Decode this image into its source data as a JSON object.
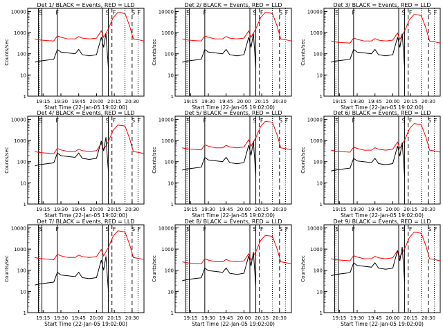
{
  "figure": {
    "panel_titles": [
      "Det 1/ BLACK = Events, RED = LLD",
      "Det 2/ BLACK = Events, RED = LLD",
      "Det 3/ BLACK = Events, RED = LLD",
      "Det 4/ BLACK = Events, RED = LLD",
      "Det 5/ BLACK = Events, RED = LLD",
      "Det 6/ BLACK = Events, RED = LLD",
      "Det 7/ BLACK = Events, RED = LLD",
      "Det 8/ BLACK = Events, RED = LLD",
      "Det 9/ BLACK = Events, RED = LLD"
    ],
    "xlabel": "Start Time (22-Jan-05 19:02:00)",
    "ylabel": "Counts/sec",
    "xticks": [
      "19:15",
      "19:30",
      "19:45",
      "20:00",
      "20:15",
      "20:30"
    ],
    "yticks": [
      "1",
      "10",
      "100",
      "1000",
      "10000"
    ],
    "markers": [
      "S",
      "F",
      "S",
      "F",
      "S",
      "F"
    ],
    "colors": {
      "events": "#000000",
      "lld": "#ff0000",
      "axes": "#000000",
      "background": "#ffffff"
    }
  },
  "chart_data": {
    "type": "line",
    "layout": "3x3 grid of panels",
    "xlim": [
      "19:02",
      "20:40"
    ],
    "ylim": [
      1,
      14000
    ],
    "yscale": "log",
    "grid": false,
    "legend": "none",
    "vertical_lines": {
      "solid": [
        "19:11",
        "19:14",
        "19:27",
        "20:05",
        "20:10"
      ],
      "dashed": [
        "20:13",
        "20:30"
      ],
      "dotted": [
        "19:12",
        "20:24",
        "20:35"
      ]
    },
    "series_shapes": {
      "events": [
        [
          "19:08",
          40
        ],
        [
          "19:12",
          45
        ],
        [
          "19:18",
          50
        ],
        [
          "19:24",
          55
        ],
        [
          "19:27",
          160
        ],
        [
          "19:30",
          120
        ],
        [
          "19:36",
          110
        ],
        [
          "19:42",
          100
        ],
        [
          "19:45",
          160
        ],
        [
          "19:48",
          90
        ],
        [
          "19:54",
          80
        ],
        [
          "20:00",
          90
        ],
        [
          "20:04",
          600
        ],
        [
          "20:06",
          200
        ],
        [
          "20:08",
          900
        ],
        [
          "20:10",
          20
        ]
      ],
      "lld": [
        [
          "19:08",
          500
        ],
        [
          "19:12",
          450
        ],
        [
          "19:18",
          420
        ],
        [
          "19:24",
          400
        ],
        [
          "19:27",
          700
        ],
        [
          "19:30",
          600
        ],
        [
          "19:36",
          500
        ],
        [
          "19:42",
          500
        ],
        [
          "19:45",
          650
        ],
        [
          "19:48",
          550
        ],
        [
          "19:54",
          500
        ],
        [
          "20:00",
          550
        ],
        [
          "20:04",
          1200
        ],
        [
          "20:06",
          600
        ],
        [
          "20:10",
          1500
        ],
        [
          "20:14",
          5000
        ],
        [
          "20:18",
          9000
        ],
        [
          "20:24",
          8000
        ],
        [
          "20:28",
          2000
        ],
        [
          "20:31",
          500
        ],
        [
          "20:36",
          450
        ],
        [
          "20:40",
          400
        ]
      ]
    }
  }
}
